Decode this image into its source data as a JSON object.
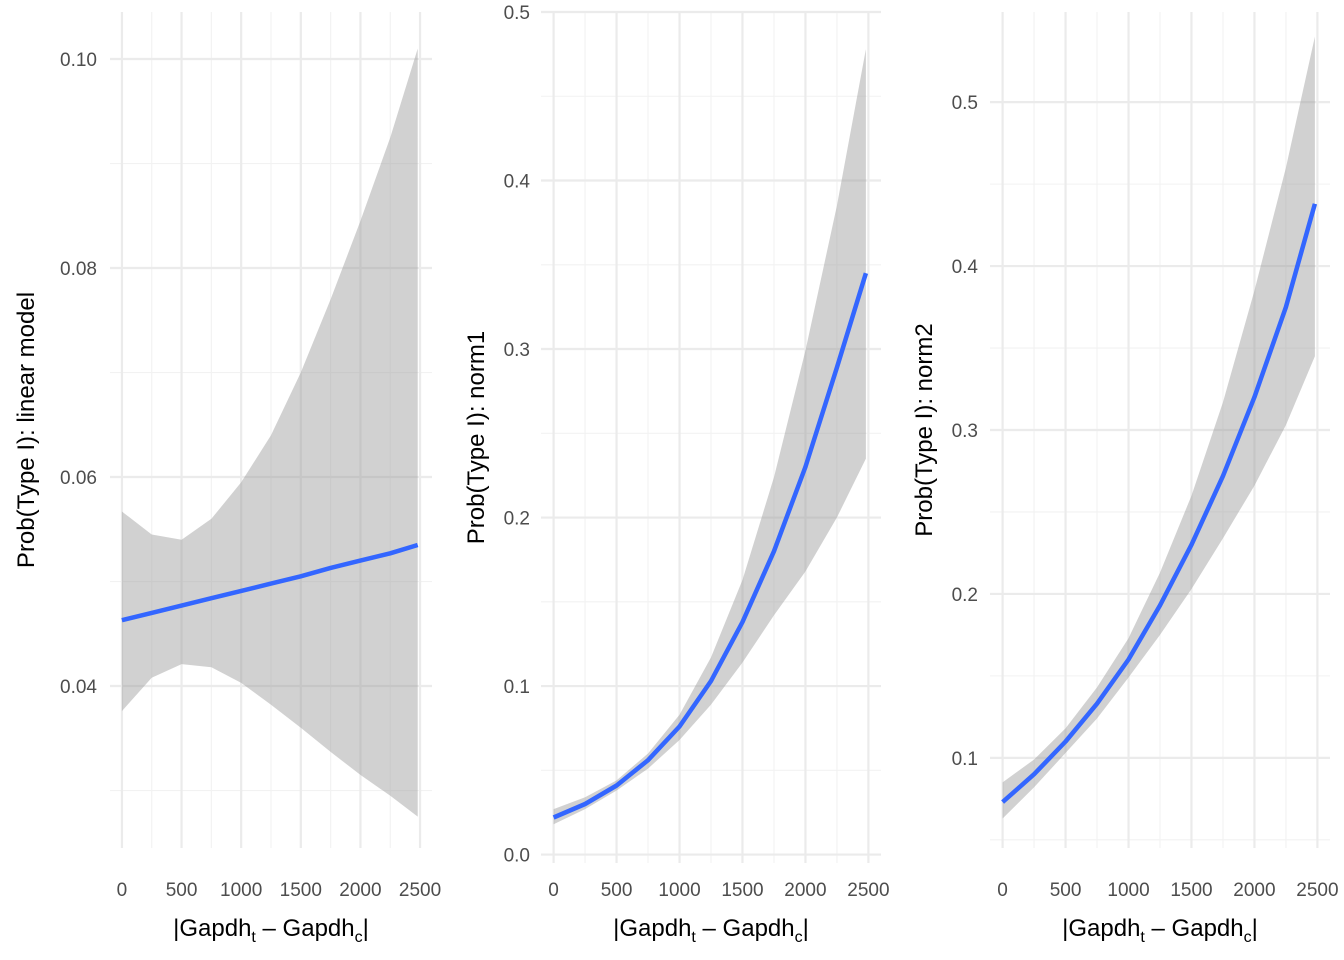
{
  "colors": {
    "line": "#3366ff",
    "ribbon": "#999999",
    "grid": "#ebebeb"
  },
  "chart_data": [
    {
      "type": "line",
      "title": "",
      "xlabel": "|Gapdh_t – Gapdh_c|",
      "xlabel_parts": {
        "open": "|Gapdh",
        "sub1": "t",
        "mid": " – Gapdh",
        "sub2": "c",
        "close": "|"
      },
      "ylabel": "Prob(Type I): linear model",
      "xlim": [
        -100,
        2600
      ],
      "ylim": [
        0.0245,
        0.1045
      ],
      "xticks": [
        0,
        500,
        1000,
        1500,
        2000,
        2500
      ],
      "xtick_labels": [
        "0",
        "500",
        "1000",
        "1500",
        "2000",
        "2500"
      ],
      "yticks": [
        0.04,
        0.06,
        0.08,
        0.1
      ],
      "ytick_labels": [
        "0.04",
        "0.06",
        "0.08",
        "0.10"
      ],
      "yminor": [
        0.03,
        0.05,
        0.07,
        0.09
      ],
      "grid": true,
      "series": [
        {
          "x": [
            0,
            250,
            500,
            750,
            1000,
            1250,
            1500,
            1750,
            2000,
            2250,
            2480
          ],
          "y": [
            0.0463,
            0.047,
            0.0477,
            0.0484,
            0.0491,
            0.0498,
            0.0505,
            0.0513,
            0.052,
            0.0527,
            0.0535
          ],
          "lower": [
            0.0376,
            0.0408,
            0.0421,
            0.0418,
            0.0403,
            0.0382,
            0.036,
            0.0337,
            0.0315,
            0.0295,
            0.0275
          ],
          "upper": [
            0.0567,
            0.0545,
            0.054,
            0.056,
            0.0595,
            0.064,
            0.07,
            0.077,
            0.0845,
            0.0925,
            0.101
          ]
        }
      ]
    },
    {
      "type": "line",
      "title": "",
      "xlabel": "|Gapdh_t – Gapdh_c|",
      "xlabel_parts": {
        "open": "|Gapdh",
        "sub1": "t",
        "mid": " – Gapdh",
        "sub2": "c",
        "close": "|"
      },
      "ylabel": "Prob(Type I): norm1",
      "xlim": [
        -100,
        2600
      ],
      "ylim": [
        -0.005,
        0.5
      ],
      "xticks": [
        0,
        500,
        1000,
        1500,
        2000,
        2500
      ],
      "xtick_labels": [
        "0",
        "500",
        "1000",
        "1500",
        "2000",
        "2500"
      ],
      "yticks": [
        0.0,
        0.1,
        0.2,
        0.3,
        0.4,
        0.5
      ],
      "ytick_labels": [
        "0.0",
        "0.1",
        "0.2",
        "0.3",
        "0.4",
        "0.5"
      ],
      "yminor": [
        0.05,
        0.15,
        0.25,
        0.35,
        0.45
      ],
      "grid": true,
      "series": [
        {
          "x": [
            0,
            250,
            500,
            750,
            1000,
            1250,
            1500,
            1750,
            2000,
            2250,
            2480
          ],
          "y": [
            0.022,
            0.03,
            0.041,
            0.056,
            0.076,
            0.103,
            0.138,
            0.18,
            0.23,
            0.289,
            0.345
          ],
          "lower": [
            0.018,
            0.027,
            0.038,
            0.051,
            0.068,
            0.089,
            0.114,
            0.142,
            0.168,
            0.2,
            0.235
          ],
          "upper": [
            0.027,
            0.034,
            0.044,
            0.06,
            0.083,
            0.117,
            0.163,
            0.224,
            0.299,
            0.385,
            0.478
          ]
        }
      ]
    },
    {
      "type": "line",
      "title": "",
      "xlabel": "|Gapdh_t – Gapdh_c|",
      "xlabel_parts": {
        "open": "|Gapdh",
        "sub1": "t",
        "mid": " – Gapdh",
        "sub2": "c",
        "close": "|"
      },
      "ylabel": "Prob(Type I): norm2",
      "xlim": [
        -100,
        2600
      ],
      "ylim": [
        0.045,
        0.555
      ],
      "xticks": [
        0,
        500,
        1000,
        1500,
        2000,
        2500
      ],
      "xtick_labels": [
        "0",
        "500",
        "1000",
        "1500",
        "2000",
        "2500"
      ],
      "yticks": [
        0.1,
        0.2,
        0.3,
        0.4,
        0.5
      ],
      "ytick_labels": [
        "0.1",
        "0.2",
        "0.3",
        "0.4",
        "0.5"
      ],
      "yminor": [
        0.05,
        0.15,
        0.25,
        0.35,
        0.45
      ],
      "grid": true,
      "series": [
        {
          "x": [
            0,
            250,
            500,
            750,
            1000,
            1250,
            1500,
            1750,
            2000,
            2250,
            2480
          ],
          "y": [
            0.073,
            0.09,
            0.11,
            0.133,
            0.16,
            0.193,
            0.23,
            0.272,
            0.32,
            0.375,
            0.438
          ],
          "lower": [
            0.063,
            0.082,
            0.103,
            0.124,
            0.149,
            0.175,
            0.203,
            0.234,
            0.266,
            0.303,
            0.345
          ],
          "upper": [
            0.085,
            0.099,
            0.118,
            0.143,
            0.173,
            0.213,
            0.26,
            0.317,
            0.385,
            0.46,
            0.54
          ]
        }
      ]
    }
  ]
}
